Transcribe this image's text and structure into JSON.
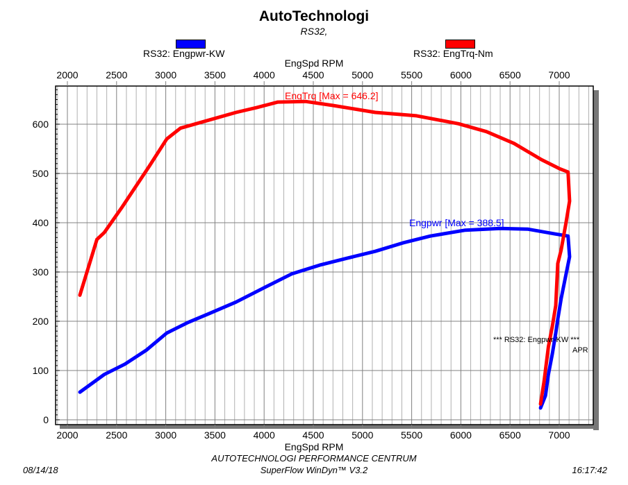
{
  "chart_data": {
    "type": "line",
    "title": "AutoTechnologi",
    "subtitle": "RS32,",
    "xlabel": "EngSpd RPM",
    "xlim": [
      1900,
      7400
    ],
    "ylim": [
      -10,
      675
    ],
    "xticks": [
      2000,
      2500,
      3000,
      3500,
      4000,
      4500,
      5000,
      5500,
      6000,
      6500,
      7000
    ],
    "yticks": [
      0,
      100,
      200,
      300,
      400,
      500,
      600
    ],
    "grid": true,
    "legend_placement": "top",
    "series": [
      {
        "name": "RS32: Engpwr-KW",
        "color": "#0000ff",
        "max_label": "Engpwr [Max = 388.5]",
        "x": [
          2127,
          2375,
          2585,
          2800,
          3010,
          3220,
          3433,
          3715,
          4000,
          4280,
          4565,
          4845,
          5130,
          5410,
          5690,
          6045,
          6400,
          6680,
          6965,
          7090,
          7105,
          7070,
          7020,
          6985,
          6965,
          6930,
          6890,
          6860,
          6810
        ],
        "y": [
          56,
          92,
          113,
          141,
          176,
          197,
          215,
          239,
          268,
          296,
          314,
          328,
          342,
          359,
          373,
          385,
          388.5,
          387,
          377,
          373,
          331,
          296,
          246,
          204,
          176,
          134,
          92,
          49,
          24
        ]
      },
      {
        "name": "RS32: EngTrq-Nm",
        "color": "#ff0000",
        "max_label": "EngTrq [Max = 646.2]",
        "x": [
          2127,
          2300,
          2375,
          2550,
          2830,
          3010,
          3150,
          3433,
          3715,
          3927,
          4140,
          4420,
          4700,
          5130,
          5550,
          5975,
          6260,
          6540,
          6820,
          7000,
          7090,
          7105,
          7070,
          7020,
          6985,
          6965,
          6930,
          6890,
          6845,
          6810
        ],
        "y": [
          253,
          366,
          380,
          430,
          514,
          570,
          592,
          608,
          624,
          634,
          645,
          646.2,
          638,
          624,
          617,
          601,
          585,
          561,
          528,
          510,
          503,
          444,
          401,
          345,
          317,
          232,
          190,
          148,
          77,
          32
        ]
      }
    ],
    "annotations": [
      "*** RS32: Engpwr-KW ***",
      "APR"
    ]
  },
  "footer": {
    "date": "08/14/18",
    "company": "AUTOTECHNOLOGI PERFORMANCE CENTRUM",
    "software": "SuperFlow WinDyn™ V3.2",
    "time": "16:17:42"
  }
}
